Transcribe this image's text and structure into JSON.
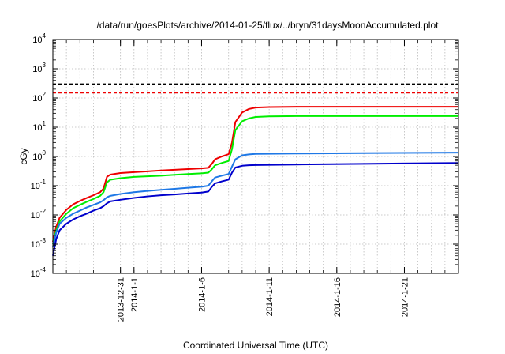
{
  "chart_data": {
    "type": "line",
    "title": "/data/run/goesPlots/archive/2014-01-25/flux/../bryn/31daysMoonAccumulated.plot",
    "xlabel": "Coordinated Universal Time (UTC)",
    "ylabel": "cGy",
    "y_scale": "log",
    "ylim": [
      0.0001,
      10000
    ],
    "y_ticks": [
      {
        "base": "10",
        "exp": "-4",
        "value": 0.0001
      },
      {
        "base": "10",
        "exp": "-3",
        "value": 0.001
      },
      {
        "base": "10",
        "exp": "-2",
        "value": 0.01
      },
      {
        "base": "10",
        "exp": "-1",
        "value": 0.1
      },
      {
        "base": "10",
        "exp": "0",
        "value": 1
      },
      {
        "base": "10",
        "exp": "1",
        "value": 10
      },
      {
        "base": "10",
        "exp": "2",
        "value": 100
      },
      {
        "base": "10",
        "exp": "3",
        "value": 1000
      },
      {
        "base": "10",
        "exp": "4",
        "value": 10000
      }
    ],
    "xlim": [
      "2013-12-26",
      "2014-01-25"
    ],
    "x_ticks": [
      {
        "label": "2013-12-31",
        "date": "2013-12-31"
      },
      {
        "label": "2014-1-1",
        "date": "2014-01-01"
      },
      {
        "label": "2014-1-6",
        "date": "2014-01-06"
      },
      {
        "label": "2014-1-11",
        "date": "2014-01-11"
      },
      {
        "label": "2014-1-16",
        "date": "2014-01-16"
      },
      {
        "label": "2014-1-21",
        "date": "2014-01-21"
      }
    ],
    "grid": true,
    "reference_lines": [
      {
        "value": 300,
        "color": "#000000",
        "style": "dashed"
      },
      {
        "value": 150,
        "color": "#ee0000",
        "style": "dashed"
      }
    ],
    "series": [
      {
        "color": "#ee0000",
        "points": [
          [
            "2013-12-26 00:00",
            0.0012
          ],
          [
            "2013-12-26 06:00",
            0.004
          ],
          [
            "2013-12-26 12:00",
            0.008
          ],
          [
            "2013-12-27 00:00",
            0.015
          ],
          [
            "2013-12-27 12:00",
            0.023
          ],
          [
            "2013-12-28 00:00",
            0.03
          ],
          [
            "2013-12-28 12:00",
            0.038
          ],
          [
            "2013-12-29 00:00",
            0.047
          ],
          [
            "2013-12-29 12:00",
            0.06
          ],
          [
            "2013-12-29 18:00",
            0.08
          ],
          [
            "2013-12-30 00:00",
            0.2
          ],
          [
            "2013-12-30 06:00",
            0.24
          ],
          [
            "2013-12-31 00:00",
            0.27
          ],
          [
            "2014-01-01 00:00",
            0.29
          ],
          [
            "2014-01-02 00:00",
            0.31
          ],
          [
            "2014-01-03 00:00",
            0.33
          ],
          [
            "2014-01-04 00:00",
            0.35
          ],
          [
            "2014-01-05 00:00",
            0.37
          ],
          [
            "2014-01-06 00:00",
            0.39
          ],
          [
            "2014-01-06 12:00",
            0.41
          ],
          [
            "2014-01-06 18:00",
            0.55
          ],
          [
            "2014-01-07 00:00",
            0.8
          ],
          [
            "2014-01-07 12:00",
            1.0
          ],
          [
            "2014-01-08 00:00",
            1.2
          ],
          [
            "2014-01-08 06:00",
            3.0
          ],
          [
            "2014-01-08 12:00",
            15.0
          ],
          [
            "2014-01-09 00:00",
            32.0
          ],
          [
            "2014-01-09 12:00",
            42.0
          ],
          [
            "2014-01-10 00:00",
            47.0
          ],
          [
            "2014-01-11 00:00",
            49.0
          ],
          [
            "2014-01-13 00:00",
            50.0
          ],
          [
            "2014-01-25 00:00",
            50.0
          ]
        ]
      },
      {
        "color": "#00ee00",
        "points": [
          [
            "2013-12-26 00:00",
            0.001
          ],
          [
            "2013-12-26 06:00",
            0.003
          ],
          [
            "2013-12-26 12:00",
            0.006
          ],
          [
            "2013-12-27 00:00",
            0.011
          ],
          [
            "2013-12-27 12:00",
            0.017
          ],
          [
            "2013-12-28 00:00",
            0.022
          ],
          [
            "2013-12-28 12:00",
            0.028
          ],
          [
            "2013-12-29 00:00",
            0.035
          ],
          [
            "2013-12-29 12:00",
            0.045
          ],
          [
            "2013-12-29 18:00",
            0.06
          ],
          [
            "2013-12-30 00:00",
            0.13
          ],
          [
            "2013-12-30 06:00",
            0.16
          ],
          [
            "2013-12-31 00:00",
            0.18
          ],
          [
            "2014-01-01 00:00",
            0.2
          ],
          [
            "2014-01-02 00:00",
            0.21
          ],
          [
            "2014-01-03 00:00",
            0.22
          ],
          [
            "2014-01-04 00:00",
            0.235
          ],
          [
            "2014-01-05 00:00",
            0.25
          ],
          [
            "2014-01-06 00:00",
            0.265
          ],
          [
            "2014-01-06 12:00",
            0.28
          ],
          [
            "2014-01-06 18:00",
            0.36
          ],
          [
            "2014-01-07 00:00",
            0.5
          ],
          [
            "2014-01-07 12:00",
            0.6
          ],
          [
            "2014-01-08 00:00",
            0.7
          ],
          [
            "2014-01-08 06:00",
            1.8
          ],
          [
            "2014-01-08 12:00",
            8.0
          ],
          [
            "2014-01-09 00:00",
            16.0
          ],
          [
            "2014-01-09 12:00",
            20.0
          ],
          [
            "2014-01-10 00:00",
            22.5
          ],
          [
            "2014-01-11 00:00",
            23.5
          ],
          [
            "2014-01-13 00:00",
            24.0
          ],
          [
            "2014-01-25 00:00",
            24.0
          ]
        ]
      },
      {
        "color": "#1e78e6",
        "points": [
          [
            "2013-12-26 00:00",
            0.0008
          ],
          [
            "2013-12-26 06:00",
            0.0025
          ],
          [
            "2013-12-26 12:00",
            0.005
          ],
          [
            "2013-12-27 00:00",
            0.008
          ],
          [
            "2013-12-27 12:00",
            0.011
          ],
          [
            "2013-12-28 00:00",
            0.014
          ],
          [
            "2013-12-28 12:00",
            0.018
          ],
          [
            "2013-12-29 00:00",
            0.022
          ],
          [
            "2013-12-29 12:00",
            0.027
          ],
          [
            "2013-12-29 18:00",
            0.032
          ],
          [
            "2013-12-30 00:00",
            0.04
          ],
          [
            "2013-12-30 06:00",
            0.045
          ],
          [
            "2013-12-31 00:00",
            0.052
          ],
          [
            "2014-01-01 00:00",
            0.06
          ],
          [
            "2014-01-02 00:00",
            0.066
          ],
          [
            "2014-01-03 00:00",
            0.072
          ],
          [
            "2014-01-04 00:00",
            0.078
          ],
          [
            "2014-01-05 00:00",
            0.085
          ],
          [
            "2014-01-06 00:00",
            0.092
          ],
          [
            "2014-01-06 12:00",
            0.1
          ],
          [
            "2014-01-06 18:00",
            0.14
          ],
          [
            "2014-01-07 00:00",
            0.19
          ],
          [
            "2014-01-07 12:00",
            0.22
          ],
          [
            "2014-01-08 00:00",
            0.25
          ],
          [
            "2014-01-08 06:00",
            0.45
          ],
          [
            "2014-01-08 12:00",
            0.8
          ],
          [
            "2014-01-09 00:00",
            1.1
          ],
          [
            "2014-01-09 12:00",
            1.18
          ],
          [
            "2014-01-10 00:00",
            1.22
          ],
          [
            "2014-01-13 00:00",
            1.26
          ],
          [
            "2014-01-18 00:00",
            1.3
          ],
          [
            "2014-01-25 00:00",
            1.35
          ]
        ]
      },
      {
        "color": "#0000cc",
        "points": [
          [
            "2013-12-26 00:00",
            0.0004
          ],
          [
            "2013-12-26 06:00",
            0.0015
          ],
          [
            "2013-12-26 12:00",
            0.003
          ],
          [
            "2013-12-27 00:00",
            0.005
          ],
          [
            "2013-12-27 12:00",
            0.007
          ],
          [
            "2013-12-28 00:00",
            0.009
          ],
          [
            "2013-12-28 12:00",
            0.011
          ],
          [
            "2013-12-29 00:00",
            0.014
          ],
          [
            "2013-12-29 12:00",
            0.017
          ],
          [
            "2013-12-29 18:00",
            0.02
          ],
          [
            "2013-12-30 00:00",
            0.025
          ],
          [
            "2013-12-30 06:00",
            0.029
          ],
          [
            "2013-12-31 00:00",
            0.033
          ],
          [
            "2014-01-01 00:00",
            0.038
          ],
          [
            "2014-01-02 00:00",
            0.043
          ],
          [
            "2014-01-03 00:00",
            0.047
          ],
          [
            "2014-01-04 00:00",
            0.05
          ],
          [
            "2014-01-05 00:00",
            0.054
          ],
          [
            "2014-01-06 00:00",
            0.058
          ],
          [
            "2014-01-06 12:00",
            0.063
          ],
          [
            "2014-01-06 18:00",
            0.09
          ],
          [
            "2014-01-07 00:00",
            0.12
          ],
          [
            "2014-01-07 12:00",
            0.14
          ],
          [
            "2014-01-08 00:00",
            0.16
          ],
          [
            "2014-01-08 06:00",
            0.28
          ],
          [
            "2014-01-08 12:00",
            0.42
          ],
          [
            "2014-01-09 00:00",
            0.48
          ],
          [
            "2014-01-09 12:00",
            0.5
          ],
          [
            "2014-01-10 00:00",
            0.51
          ],
          [
            "2014-01-13 00:00",
            0.53
          ],
          [
            "2014-01-18 00:00",
            0.56
          ],
          [
            "2014-01-25 00:00",
            0.6
          ]
        ]
      }
    ]
  }
}
